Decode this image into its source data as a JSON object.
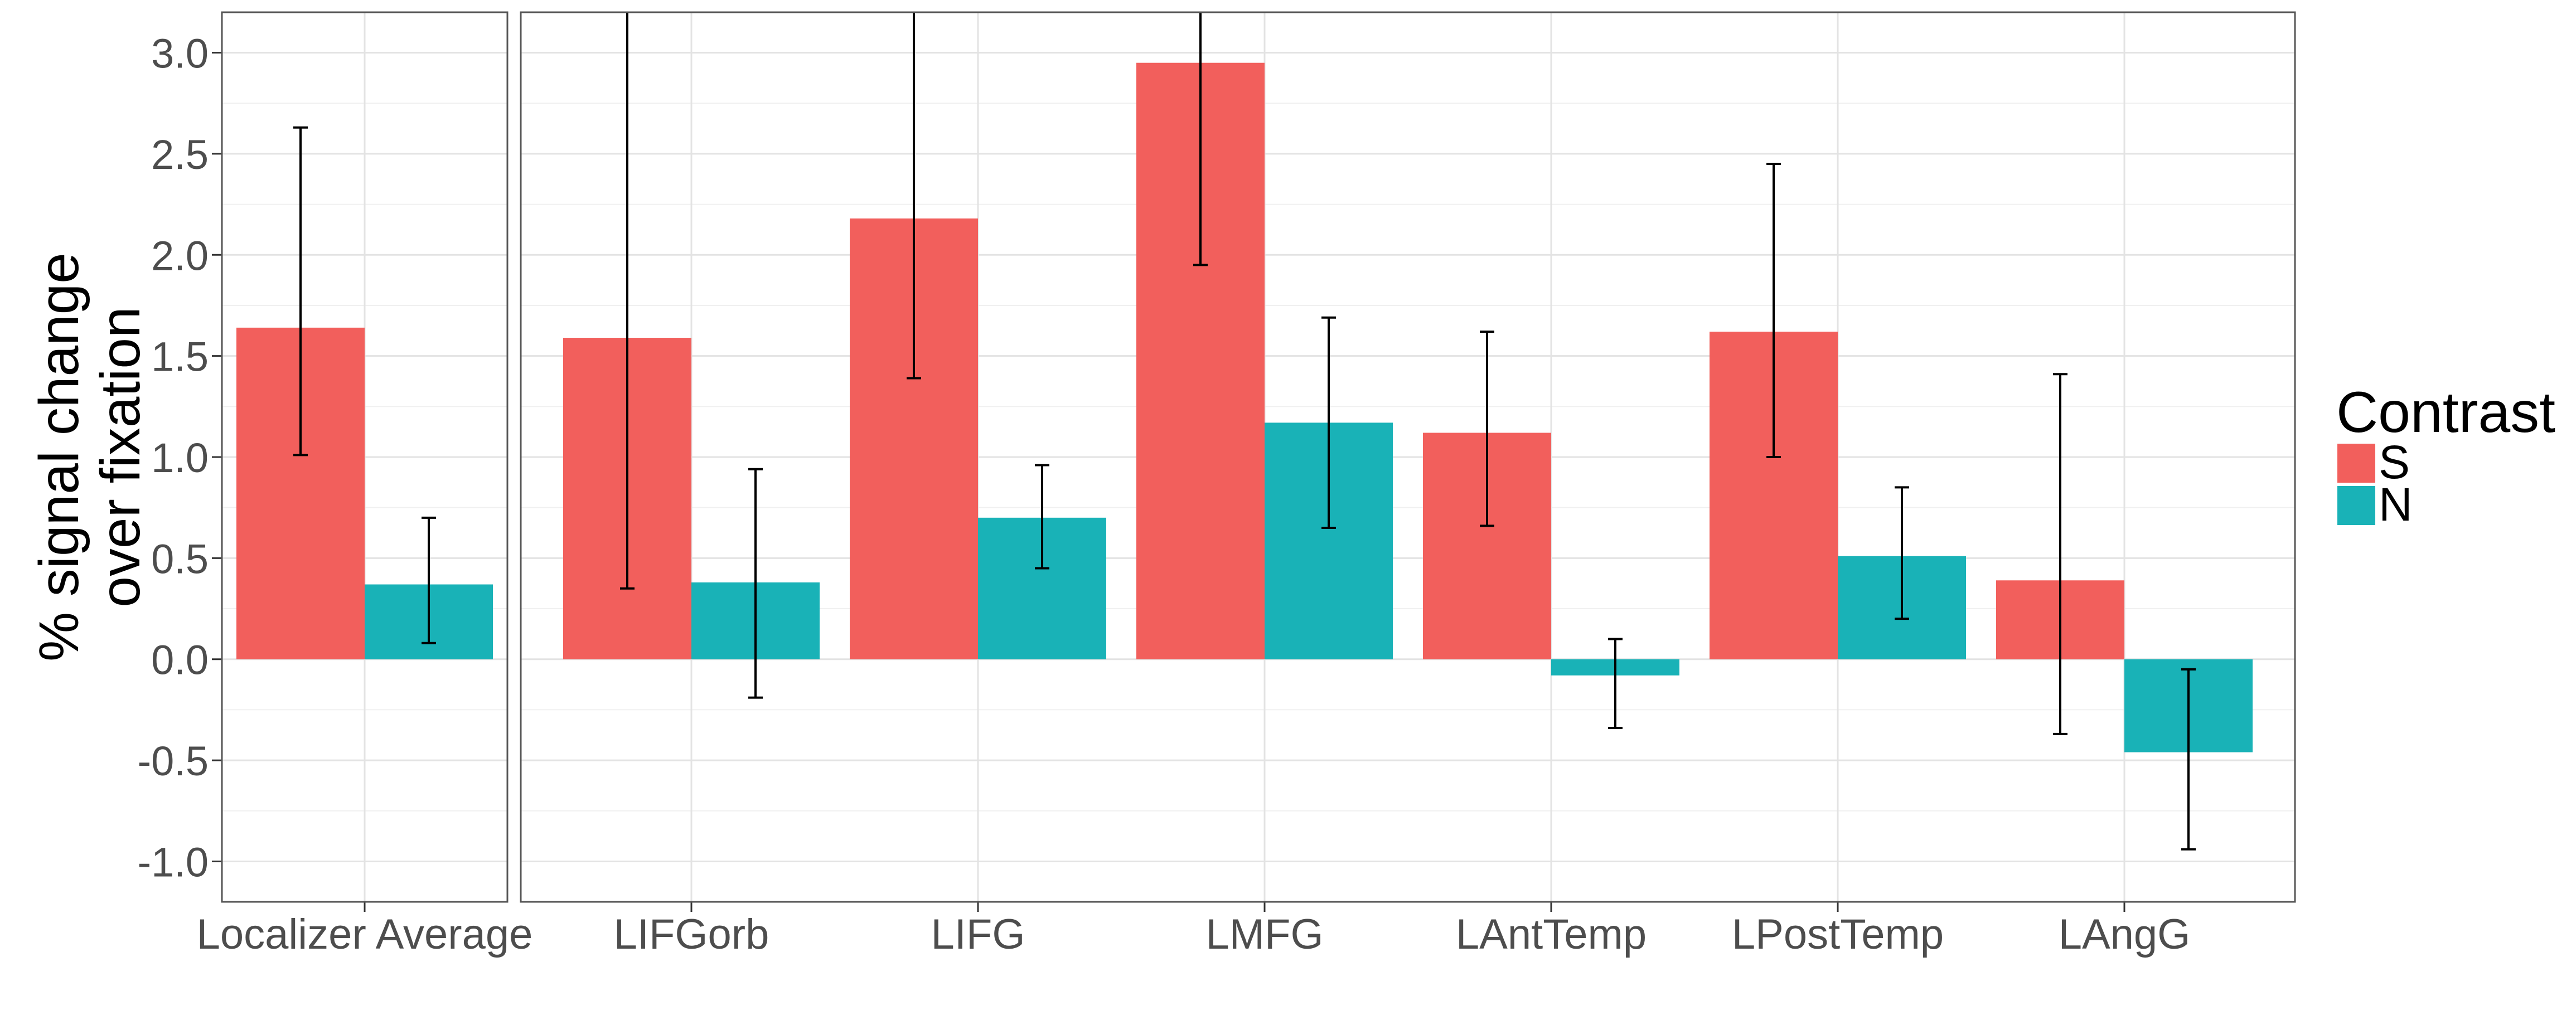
{
  "chart_data": {
    "type": "bar",
    "ylabel_lines": [
      "% signal change",
      "over fixation"
    ],
    "ylim": [
      -1.2,
      3.2
    ],
    "yticks": [
      -1.0,
      -0.5,
      0.0,
      0.5,
      1.0,
      1.5,
      2.0,
      2.5,
      3.0
    ],
    "ytick_labels": [
      "-1.0",
      "-0.5",
      "0.0",
      "0.5",
      "1.0",
      "1.5",
      "2.0",
      "2.5",
      "3.0"
    ],
    "grid": true,
    "legend": {
      "title": "Contrast",
      "position": "right",
      "entries": [
        {
          "label": "S",
          "color": "#F25F5C"
        },
        {
          "label": "N",
          "color": "#19B2B7"
        }
      ]
    },
    "panels": [
      {
        "categories": [
          "Localizer Average"
        ],
        "series": [
          {
            "name": "S",
            "values": [
              1.64
            ],
            "error_low": [
              1.01
            ],
            "error_high": [
              2.63
            ]
          },
          {
            "name": "N",
            "values": [
              0.37
            ],
            "error_low": [
              0.08
            ],
            "error_high": [
              0.7
            ]
          }
        ]
      },
      {
        "categories": [
          "LIFGorb",
          "LIFG",
          "LMFG",
          "LAntTemp",
          "LPostTemp",
          "LAngG"
        ],
        "series": [
          {
            "name": "S",
            "values": [
              1.59,
              2.18,
              2.95,
              1.12,
              1.62,
              0.39
            ],
            "error_low": [
              0.35,
              1.39,
              1.95,
              0.66,
              1.0,
              -0.37
            ],
            "error_high": [
              3.3,
              3.3,
              3.3,
              1.62,
              2.45,
              1.41
            ]
          },
          {
            "name": "N",
            "values": [
              0.38,
              0.7,
              1.17,
              -0.08,
              0.51,
              -0.46
            ],
            "error_low": [
              -0.19,
              0.45,
              0.65,
              -0.34,
              0.2,
              -0.94
            ],
            "error_high": [
              0.94,
              0.96,
              1.69,
              0.1,
              0.85,
              -0.05
            ]
          }
        ]
      }
    ]
  }
}
